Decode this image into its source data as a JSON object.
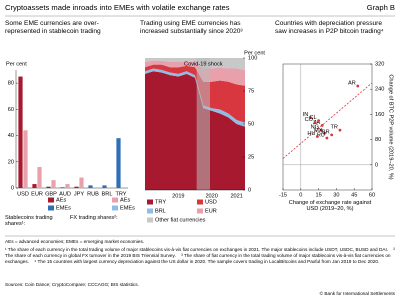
{
  "header": {
    "title": "Cryptoassets made inroads into EMEs with volatile exchange rates",
    "label": "Graph B"
  },
  "chart_data": [
    {
      "type": "bar",
      "title": "Some EME currencies are over-represented in stablecoin trading",
      "y_label": "Per cent",
      "categories": [
        "USD",
        "EUR",
        "GBP",
        "AUD",
        "JPY",
        "RUB",
        "BRL",
        "TRY"
      ],
      "ylim": [
        0,
        90
      ],
      "yticks": [
        0,
        20,
        40,
        60,
        80
      ],
      "series_groups": [
        {
          "title": "Stablecoins trading shares¹:",
          "series": [
            {
              "name": "AEs",
              "color": "#a6192e",
              "values": [
                85,
                3,
                1,
                0.5,
                1,
                null,
                null,
                null
              ]
            },
            {
              "name": "EMEs",
              "color": "#2e6fb7",
              "values": [
                null,
                null,
                null,
                null,
                null,
                2,
                2,
                38
              ]
            }
          ]
        },
        {
          "title": "FX trading shares²:",
          "series": [
            {
              "name": "AEs",
              "color": "#e8a0ab",
              "values": [
                44,
                16,
                6,
                3,
                8,
                null,
                null,
                null
              ]
            },
            {
              "name": "EMEs",
              "color": "#8fbde6",
              "values": [
                null,
                null,
                null,
                null,
                null,
                0.5,
                0.5,
                0.5
              ]
            }
          ]
        }
      ]
    },
    {
      "type": "area",
      "title": "Trading using EME currencies has increased substantially since 2020³",
      "y_label": "Per cent",
      "x": [
        2018.5,
        2018.75,
        2019,
        2019.25,
        2019.5,
        2019.75,
        2020,
        2020.25,
        2020.5,
        2020.75,
        2021,
        2021.25,
        2021.5
      ],
      "xlim": [
        2018.5,
        2021.5
      ],
      "xticks": [
        {
          "value": 2019.5,
          "label": "2019"
        },
        {
          "value": 2020.5,
          "label": "2020"
        },
        {
          "value": 2021.25,
          "label": "2021"
        }
      ],
      "ylim": [
        0,
        100
      ],
      "yticks": [
        0,
        25,
        50,
        75,
        100
      ],
      "shaded_region": [
        2020.05,
        2020.45
      ],
      "shaded_label": "Covid-19 shock",
      "series": [
        {
          "name": "TRY",
          "color": "#a6192e",
          "values": [
            88,
            90,
            89,
            87,
            86,
            88,
            85,
            62,
            60,
            58,
            55,
            50,
            48
          ]
        },
        {
          "name": "BRL",
          "color": "#8fbde6",
          "values": [
            2,
            2,
            2,
            2,
            2,
            2,
            2,
            2,
            2,
            3,
            3,
            3,
            3
          ]
        },
        {
          "name": "USD",
          "color": "#d9373f",
          "values": [
            3,
            3,
            4,
            4,
            5,
            4,
            6,
            18,
            20,
            22,
            24,
            27,
            28
          ]
        },
        {
          "name": "EUR",
          "color": "#e8a0ab",
          "values": [
            4,
            3,
            3,
            4,
            4,
            3,
            4,
            10,
            10,
            10,
            10,
            12,
            12
          ]
        },
        {
          "name": "Other fiat currencies",
          "color": "#c8c8c8",
          "values": [
            3,
            2,
            2,
            3,
            3,
            3,
            3,
            8,
            8,
            7,
            8,
            8,
            9
          ]
        }
      ]
    },
    {
      "type": "scatter",
      "title": "Countries with depreciation pressure saw increases in P2P bitcoin trading⁴",
      "x_label": "Change of exchange rate against USD (2019–20, %)",
      "y_label": "Change of BTC P2P volume (2019–20, %)",
      "xlim": [
        -15,
        60
      ],
      "xticks": [
        -15,
        0,
        15,
        30,
        45,
        60
      ],
      "ylim": [
        -80,
        320
      ],
      "yticks": [
        0,
        80,
        160,
        240,
        320
      ],
      "color": "#d9373f",
      "labels": [
        "AR",
        "TR",
        "ZA",
        "CO",
        "IN",
        "CL",
        "NG",
        "MX",
        "BR",
        "RU",
        "HU"
      ],
      "x": [
        48,
        33,
        18,
        12,
        8,
        15,
        17,
        20,
        26,
        22,
        14
      ],
      "y": [
        250,
        110,
        125,
        135,
        150,
        140,
        110,
        100,
        95,
        85,
        90
      ],
      "trend_line": {
        "x": [
          -15,
          60
        ],
        "y": [
          20,
          260
        ]
      }
    }
  ],
  "footnotes": {
    "abbreviations": "AEs = advanced economies; EMEs = emerging market economies.",
    "notes": [
      "¹ The share of each currency in the total trading volume of major stablecoins vis-à-vis fiat currencies on exchanges in 2021. The major stablecoins include USDT, USDC, BUSD and DAI.",
      "² The share of each currency in global FX turnover in the 2019 BIS Triennial Survey.",
      "³ The share of fiat currency in the total trading volume of major stablecoins vis-à-vis fiat currencies on exchanges.",
      "⁴ The 15 countries with largest currency depreciation against the US dollar in 2020. The sample covers trading in LocalBitcoins and Paxful from Jan 2019 to Dec 2020."
    ],
    "sources": "Sources: Coin Dance; CryptoCompare; CCCAGG; BIS statistics.",
    "copyright": "© Bank for International Settlements"
  }
}
